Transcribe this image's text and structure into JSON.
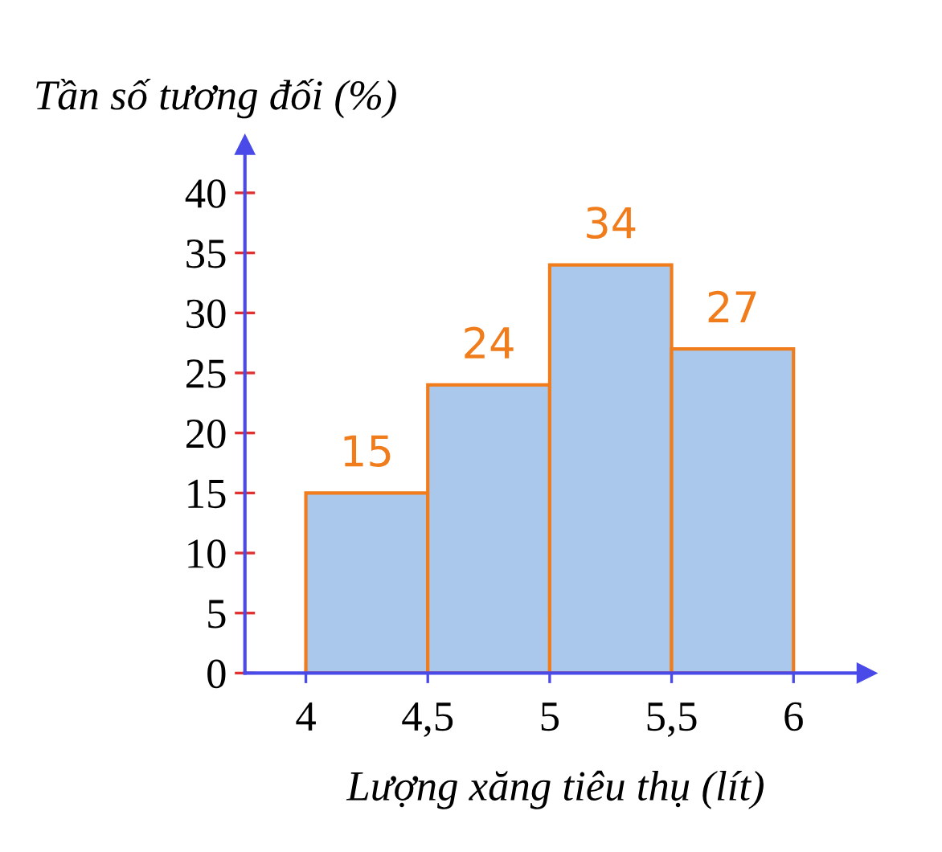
{
  "chart_data": {
    "type": "histogram",
    "ylabel": "Tần số tương đối (%)",
    "xlabel": "Lượng xăng tiêu thụ (lít)",
    "bins": [
      4,
      4.5,
      5,
      5.5,
      6
    ],
    "values": [
      15,
      24,
      34,
      27
    ],
    "color": "#a9c8ec",
    "data_labels": true,
    "xlim": [
      3.75,
      6.3
    ],
    "ylim": [
      0,
      44
    ],
    "xticks": [
      4,
      {
        "value": 4.5,
        "label": "4,5"
      },
      5,
      {
        "value": 5.5,
        "label": "5,5"
      },
      6
    ],
    "yticks": [
      0,
      5,
      10,
      15,
      20,
      25,
      30,
      35,
      40
    ],
    "grid": false,
    "legend": false
  }
}
